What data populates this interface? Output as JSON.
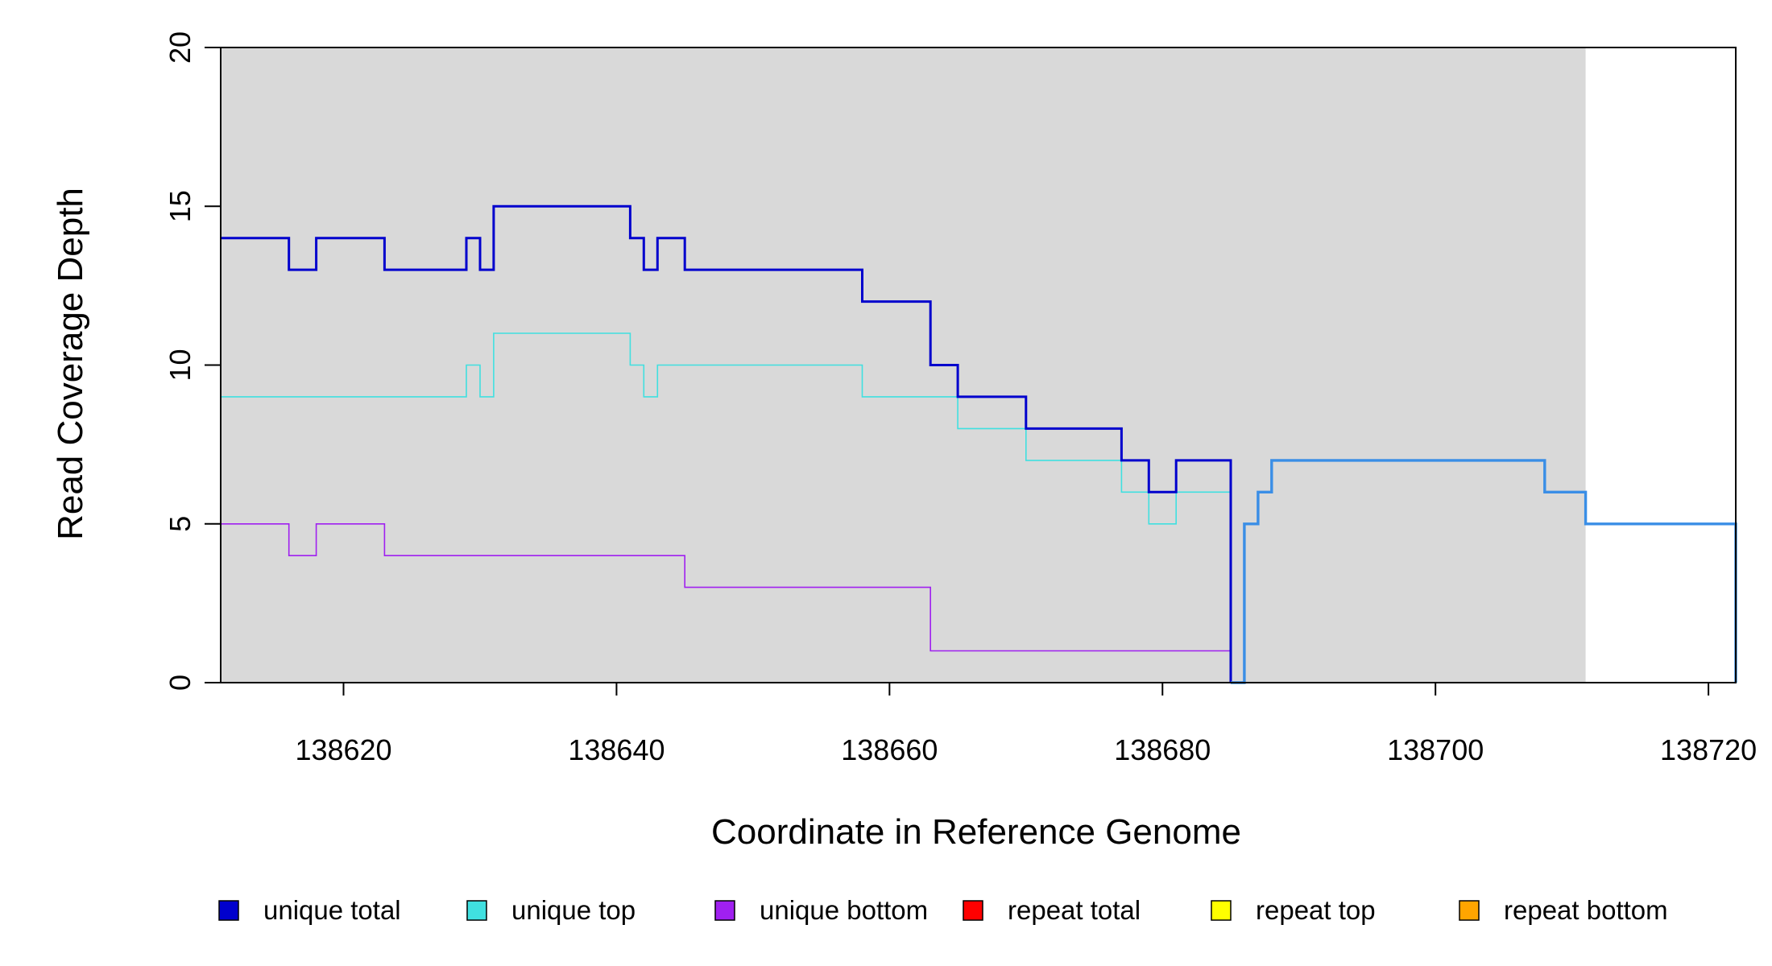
{
  "chart_data": {
    "type": "line",
    "xlabel": "Coordinate in Reference Genome",
    "ylabel": "Read Coverage Depth",
    "xlim": [
      138611,
      138722
    ],
    "ylim": [
      0,
      20
    ],
    "x_ticks": [
      138620,
      138640,
      138660,
      138680,
      138700,
      138720
    ],
    "y_ticks": [
      0,
      5,
      10,
      15,
      20
    ],
    "shaded_region": {
      "x": [
        138611,
        138711
      ],
      "color": "#d9d9d9"
    },
    "legend_position": "bottom",
    "series": [
      {
        "name": "unique total",
        "color": "#0000cd",
        "points": [
          [
            138611,
            14
          ],
          [
            138616,
            13
          ],
          [
            138618,
            14
          ],
          [
            138623,
            13
          ],
          [
            138629,
            14
          ],
          [
            138630,
            13
          ],
          [
            138631,
            15
          ],
          [
            138641,
            14
          ],
          [
            138642,
            13
          ],
          [
            138643,
            14
          ],
          [
            138645,
            13
          ],
          [
            138658,
            12
          ],
          [
            138663,
            10
          ],
          [
            138665,
            9
          ],
          [
            138670,
            8
          ],
          [
            138677,
            7
          ],
          [
            138679,
            6
          ],
          [
            138681,
            7
          ],
          [
            138685,
            0
          ]
        ]
      },
      {
        "name": "unique top",
        "color": "#40e0e0",
        "points": [
          [
            138611,
            9
          ],
          [
            138629,
            10
          ],
          [
            138630,
            9
          ],
          [
            138631,
            11
          ],
          [
            138641,
            10
          ],
          [
            138642,
            9
          ],
          [
            138643,
            10
          ],
          [
            138658,
            9
          ],
          [
            138665,
            8
          ],
          [
            138670,
            7
          ],
          [
            138677,
            6
          ],
          [
            138679,
            5
          ],
          [
            138681,
            6
          ],
          [
            138685,
            0
          ]
        ]
      },
      {
        "name": "unique bottom",
        "color": "#a020f0",
        "points": [
          [
            138611,
            5
          ],
          [
            138616,
            4
          ],
          [
            138618,
            5
          ],
          [
            138623,
            4
          ],
          [
            138645,
            3
          ],
          [
            138663,
            1
          ],
          [
            138685,
            0
          ]
        ]
      },
      {
        "name": "repeat total",
        "color": "#ff0000",
        "points": [
          [
            138611,
            0
          ],
          [
            138722,
            0
          ]
        ]
      },
      {
        "name": "repeat top",
        "color": "#ffff00",
        "points": [
          [
            138611,
            0
          ],
          [
            138722,
            0
          ]
        ]
      },
      {
        "name": "repeat bottom",
        "color": "#ffa500",
        "points": [
          [
            138611,
            0
          ],
          [
            138722,
            0
          ]
        ]
      }
    ],
    "overlay_series": {
      "color": "#3a8ee6",
      "points": [
        [
          138685,
          0
        ],
        [
          138686,
          0
        ],
        [
          138686,
          5
        ],
        [
          138687,
          6
        ],
        [
          138688,
          7
        ],
        [
          138708,
          6
        ],
        [
          138711,
          5
        ],
        [
          138722,
          5
        ],
        [
          138722,
          0
        ]
      ]
    }
  }
}
